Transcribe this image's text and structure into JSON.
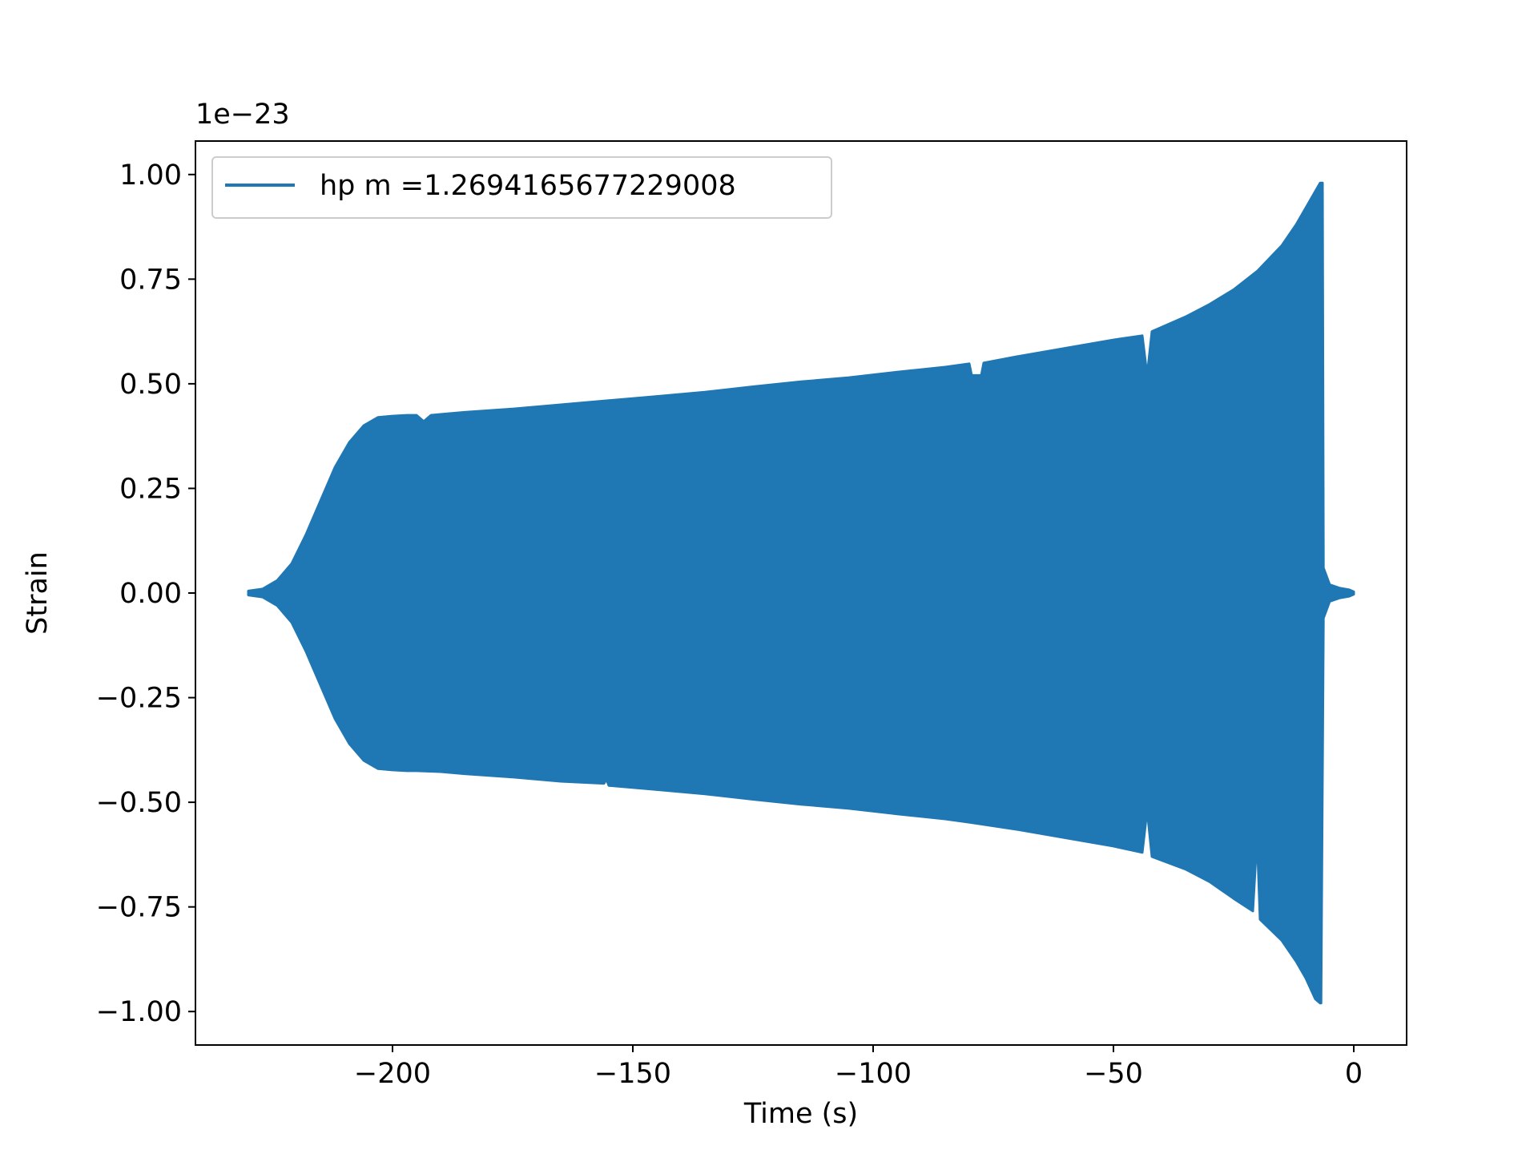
{
  "chart_data": {
    "type": "line",
    "title": "",
    "xlabel": "Time (s)",
    "ylabel": "Strain",
    "offset_text": "1e−23",
    "xlim": [
      -241,
      11
    ],
    "ylim": [
      -1.08,
      1.08
    ],
    "x_ticks": [
      {
        "value": -200,
        "label": "−200"
      },
      {
        "value": -150,
        "label": "−150"
      },
      {
        "value": -100,
        "label": "−100"
      },
      {
        "value": -50,
        "label": "−50"
      },
      {
        "value": 0,
        "label": "0"
      }
    ],
    "y_ticks": [
      {
        "value": 1.0,
        "label": "1.00"
      },
      {
        "value": 0.75,
        "label": "0.75"
      },
      {
        "value": 0.5,
        "label": "0.50"
      },
      {
        "value": 0.25,
        "label": "0.25"
      },
      {
        "value": 0.0,
        "label": "0.00"
      },
      {
        "value": -0.25,
        "label": "−0.25"
      },
      {
        "value": -0.5,
        "label": "−0.50"
      },
      {
        "value": -0.75,
        "label": "−0.75"
      },
      {
        "value": -1.0,
        "label": "−1.00"
      }
    ],
    "grid": false,
    "legend_position": "upper-left",
    "series": [
      {
        "name": "hp m =1.2694165677229008",
        "color": "#1f77b4",
        "envelope_upper": {
          "x": [
            -230,
            -227,
            -224,
            -221,
            -218,
            -215,
            -212,
            -209,
            -206,
            -203,
            -200,
            -197,
            -195,
            -193.5,
            -192,
            -190,
            -185,
            -175,
            -165,
            -155,
            -145,
            -135,
            -125,
            -115,
            -105,
            -95,
            -85,
            -80,
            -79.5,
            -77.5,
            -77,
            -70,
            -60,
            -50,
            -44,
            -43.2,
            -42.8,
            -42,
            -35,
            -30,
            -25,
            -20,
            -15,
            -12,
            -10,
            -8,
            -7,
            -6.5,
            -6.3,
            -5,
            -3,
            -1,
            0
          ],
          "y": [
            0.005,
            0.01,
            0.03,
            0.07,
            0.14,
            0.22,
            0.3,
            0.36,
            0.4,
            0.42,
            0.423,
            0.425,
            0.425,
            0.41,
            0.425,
            0.427,
            0.432,
            0.44,
            0.45,
            0.46,
            0.47,
            0.48,
            0.493,
            0.505,
            0.515,
            0.528,
            0.54,
            0.548,
            0.52,
            0.52,
            0.55,
            0.565,
            0.585,
            0.605,
            0.615,
            0.54,
            0.54,
            0.625,
            0.66,
            0.69,
            0.725,
            0.77,
            0.83,
            0.88,
            0.92,
            0.96,
            0.98,
            0.98,
            0.06,
            0.02,
            0.012,
            0.008,
            0.003
          ]
        },
        "envelope_lower": {
          "x": [
            -230,
            -227,
            -224,
            -221,
            -218,
            -215,
            -212,
            -209,
            -206,
            -203,
            -200,
            -197,
            -195,
            -190,
            -185,
            -175,
            -165,
            -156,
            -155.5,
            -155,
            -145,
            -135,
            -125,
            -115,
            -105,
            -95,
            -85,
            -80,
            -70,
            -60,
            -50,
            -44,
            -43.2,
            -42.8,
            -42,
            -35,
            -30,
            -25,
            -21,
            -20.3,
            -20,
            -19.5,
            -15,
            -12,
            -10,
            -8,
            -7,
            -6.8,
            -6.3,
            -5,
            -3,
            -1,
            0
          ],
          "y": [
            -0.005,
            -0.01,
            -0.03,
            -0.07,
            -0.14,
            -0.22,
            -0.3,
            -0.36,
            -0.4,
            -0.42,
            -0.423,
            -0.425,
            -0.425,
            -0.427,
            -0.432,
            -0.44,
            -0.45,
            -0.455,
            -0.445,
            -0.46,
            -0.47,
            -0.48,
            -0.493,
            -0.505,
            -0.515,
            -0.528,
            -0.54,
            -0.548,
            -0.565,
            -0.585,
            -0.605,
            -0.62,
            -0.54,
            -0.54,
            -0.63,
            -0.66,
            -0.69,
            -0.73,
            -0.76,
            -0.62,
            -0.62,
            -0.78,
            -0.83,
            -0.88,
            -0.92,
            -0.97,
            -0.98,
            -0.98,
            -0.06,
            -0.02,
            -0.012,
            -0.008,
            -0.003
          ]
        }
      }
    ]
  }
}
